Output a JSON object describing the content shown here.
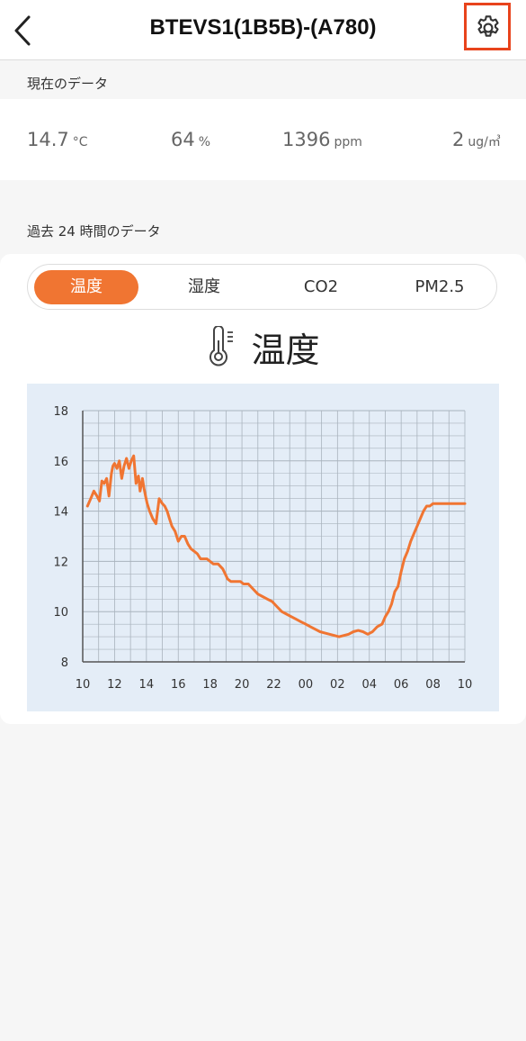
{
  "header": {
    "title": "BTEVS1(1B5B)-(A780)",
    "back_icon": "chevron-left-icon",
    "settings_icon": "gear-icon",
    "settings_highlight_color": "#e8431c"
  },
  "current": {
    "label": "現在のデータ",
    "metrics": [
      {
        "value": "14.7",
        "unit": "°C"
      },
      {
        "value": "64",
        "unit": "%"
      },
      {
        "value": "1396",
        "unit": "ppm"
      },
      {
        "value": "2",
        "unit": "ug/㎥"
      }
    ]
  },
  "history": {
    "label": "過去 24 時間のデータ",
    "tabs": [
      {
        "label": "温度",
        "active": true
      },
      {
        "label": "湿度",
        "active": false
      },
      {
        "label": "CO2",
        "active": false
      },
      {
        "label": "PM2.5",
        "active": false
      }
    ],
    "selected_title": "温度",
    "selected_icon": "thermometer-icon"
  },
  "colors": {
    "accent": "#f07532",
    "chart_bg": "#e4edf7",
    "grid": "#a9b3bd"
  },
  "chart_data": {
    "type": "line",
    "title": "",
    "xlabel": "",
    "ylabel": "",
    "ylim": [
      8,
      18
    ],
    "yticks": [
      8,
      10,
      12,
      14,
      16,
      18
    ],
    "xticks": [
      "10",
      "12",
      "14",
      "16",
      "18",
      "20",
      "22",
      "00",
      "02",
      "04",
      "06",
      "08",
      "10"
    ],
    "xlim_hours": [
      0,
      24
    ],
    "grid": true,
    "series": [
      {
        "color": "#f07532",
        "x": [
          0.3,
          0.5,
          0.7,
          0.9,
          1.05,
          1.2,
          1.35,
          1.5,
          1.65,
          1.8,
          1.9,
          2.0,
          2.15,
          2.3,
          2.45,
          2.6,
          2.75,
          2.9,
          3.05,
          3.2,
          3.35,
          3.5,
          3.6,
          3.75,
          3.85,
          3.95,
          4.05,
          4.2,
          4.4,
          4.6,
          4.8,
          5.0,
          5.15,
          5.3,
          5.45,
          5.6,
          5.8,
          6.0,
          6.2,
          6.4,
          6.6,
          6.8,
          7.0,
          7.2,
          7.4,
          7.6,
          7.8,
          8.0,
          8.2,
          8.5,
          8.8,
          9.1,
          9.3,
          9.5,
          9.7,
          9.9,
          10.1,
          10.4,
          10.7,
          11.0,
          11.3,
          11.6,
          11.9,
          12.2,
          12.5,
          12.8,
          13.1,
          13.4,
          13.7,
          14.0,
          14.3,
          14.6,
          14.9,
          15.2,
          15.5,
          15.8,
          16.1,
          16.4,
          16.7,
          17.0,
          17.3,
          17.6,
          17.9,
          18.2,
          18.5,
          18.8,
          19.0,
          19.2,
          19.4,
          19.6,
          19.8,
          20.0,
          20.2,
          20.4,
          20.6,
          20.8,
          21.0,
          21.2,
          21.4,
          21.6,
          21.8,
          22.0,
          22.2,
          22.4,
          22.6,
          22.8,
          23.0,
          23.2,
          23.4,
          23.6,
          23.8,
          24.0
        ],
        "values": [
          14.2,
          14.5,
          14.8,
          14.6,
          14.4,
          15.2,
          15.1,
          15.3,
          14.6,
          15.5,
          15.8,
          15.9,
          15.7,
          16.0,
          15.3,
          15.8,
          16.1,
          15.7,
          16.0,
          16.2,
          15.1,
          15.4,
          14.8,
          15.3,
          14.9,
          14.6,
          14.3,
          14.0,
          13.7,
          13.5,
          14.5,
          14.3,
          14.2,
          14.0,
          13.7,
          13.4,
          13.2,
          12.8,
          13.0,
          13.0,
          12.7,
          12.5,
          12.4,
          12.3,
          12.1,
          12.1,
          12.1,
          12.0,
          11.9,
          11.9,
          11.7,
          11.3,
          11.2,
          11.2,
          11.2,
          11.2,
          11.1,
          11.1,
          10.9,
          10.7,
          10.6,
          10.5,
          10.4,
          10.2,
          10.0,
          9.9,
          9.8,
          9.7,
          9.6,
          9.5,
          9.4,
          9.3,
          9.2,
          9.15,
          9.1,
          9.05,
          9.0,
          9.05,
          9.1,
          9.2,
          9.25,
          9.2,
          9.1,
          9.2,
          9.4,
          9.5,
          9.8,
          10.0,
          10.3,
          10.8,
          11.0,
          11.6,
          12.1,
          12.4,
          12.8,
          13.1,
          13.4,
          13.7,
          14.0,
          14.2,
          14.2,
          14.3,
          14.3,
          14.3,
          14.3,
          14.3,
          14.3,
          14.3,
          14.3,
          14.3,
          14.3,
          14.3
        ]
      }
    ]
  }
}
